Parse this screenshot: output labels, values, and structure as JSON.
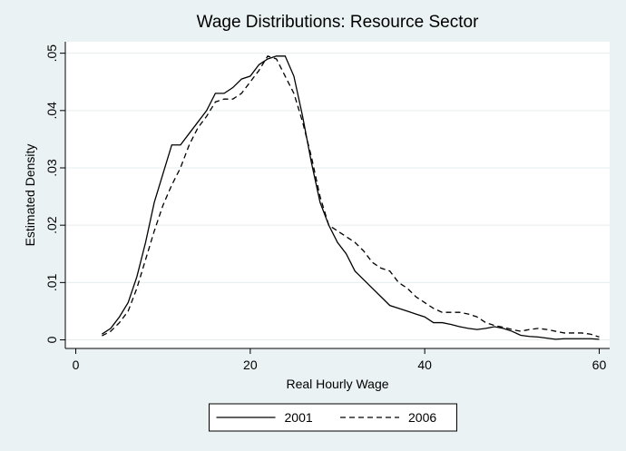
{
  "chart_data": {
    "type": "line",
    "title": "Wage Distributions: Resource Sector",
    "x_label": "Real Hourly Wage",
    "y_label": "Estimated Density",
    "x": [
      3,
      4,
      5,
      6,
      7,
      8,
      9,
      10,
      11,
      12,
      13,
      14,
      15,
      16,
      17,
      18,
      19,
      20,
      21,
      22,
      23,
      24,
      25,
      26,
      27,
      28,
      29,
      30,
      31,
      32,
      33,
      34,
      35,
      36,
      37,
      38,
      39,
      40,
      41,
      42,
      43,
      44,
      45,
      46,
      47,
      48,
      49,
      50,
      51,
      52,
      53,
      54,
      55,
      56,
      57,
      58,
      59,
      60
    ],
    "series": [
      {
        "name": "2001",
        "color": "#000000",
        "line_style": "solid",
        "values": [
          0.001,
          0.002,
          0.004,
          0.0065,
          0.011,
          0.017,
          0.024,
          0.029,
          0.034,
          0.034,
          0.036,
          0.038,
          0.04,
          0.043,
          0.043,
          0.044,
          0.0455,
          0.046,
          0.048,
          0.049,
          0.0495,
          0.0495,
          0.046,
          0.039,
          0.031,
          0.024,
          0.02,
          0.017,
          0.015,
          0.012,
          0.0105,
          0.009,
          0.0075,
          0.006,
          0.0055,
          0.005,
          0.0045,
          0.004,
          0.003,
          0.003,
          0.0027,
          0.0023,
          0.002,
          0.0018,
          0.002,
          0.0023,
          0.002,
          0.0015,
          0.0008,
          0.0006,
          0.0005,
          0.0003,
          0.0001,
          0.0002,
          0.0002,
          0.0002,
          0.0002,
          0.0001
        ]
      },
      {
        "name": "2006",
        "color": "#000000",
        "line_style": "dashed",
        "values": [
          0.0007,
          0.0015,
          0.003,
          0.005,
          0.009,
          0.014,
          0.019,
          0.0235,
          0.027,
          0.03,
          0.034,
          0.037,
          0.039,
          0.0415,
          0.042,
          0.042,
          0.043,
          0.045,
          0.047,
          0.0495,
          0.049,
          0.046,
          0.043,
          0.038,
          0.032,
          0.025,
          0.02,
          0.019,
          0.018,
          0.017,
          0.0155,
          0.0135,
          0.0125,
          0.012,
          0.01,
          0.009,
          0.0075,
          0.0065,
          0.0055,
          0.0048,
          0.0048,
          0.0048,
          0.0045,
          0.004,
          0.003,
          0.0025,
          0.0022,
          0.0018,
          0.0015,
          0.0018,
          0.002,
          0.0018,
          0.0015,
          0.0012,
          0.0012,
          0.0012,
          0.001,
          0.0005
        ]
      }
    ],
    "xlim": [
      -1.2,
      61.2
    ],
    "ylim": [
      -0.0015,
      0.052
    ],
    "xticks": [
      0,
      20,
      40,
      60
    ],
    "yticks": [
      0,
      {
        "value": 0.01,
        "label": ".01"
      },
      {
        "value": 0.02,
        "label": ".02"
      },
      {
        "value": 0.03,
        "label": ".03"
      },
      {
        "value": 0.04,
        "label": ".04"
      },
      {
        "value": 0.05,
        "label": ".05"
      }
    ],
    "grid": true,
    "legend": "bottom"
  }
}
